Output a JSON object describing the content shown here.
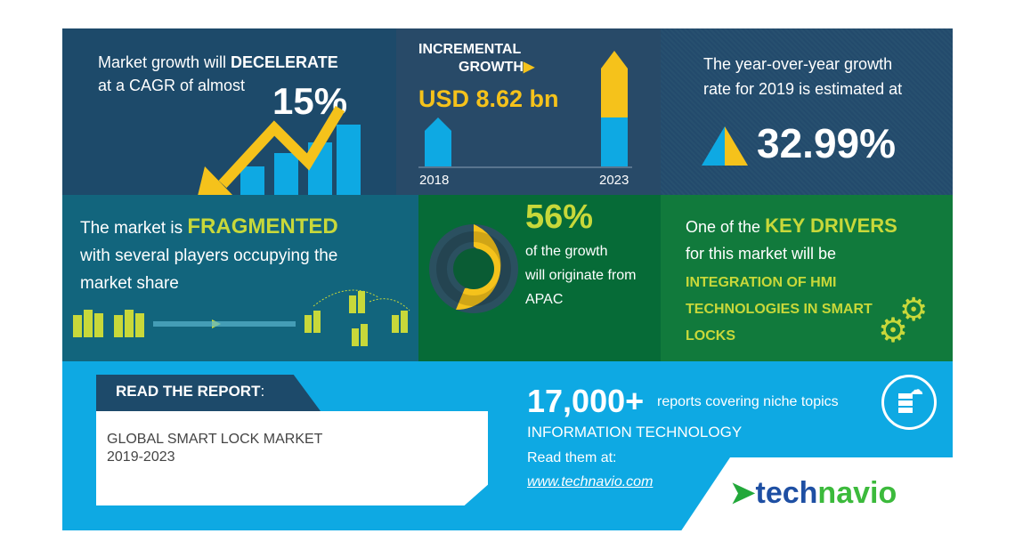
{
  "cagr": {
    "line1_prefix": "Market growth will ",
    "line1_bold": "DECELERATE",
    "line2": "at a CAGR of almost",
    "value": "15%"
  },
  "incremental": {
    "title1": "INCREMENTAL",
    "title2": "GROWTH",
    "value": "USD 8.62 bn",
    "year_start": "2018",
    "year_end": "2023"
  },
  "yoy": {
    "line1": "The year-over-year growth",
    "line2": "rate for 2019 is estimated at",
    "value": "32.99%"
  },
  "fragmented": {
    "prefix": "The market is ",
    "bold": "FRAGMENTED",
    "line2": "with several players occupying the",
    "line3": "market share"
  },
  "region": {
    "value": "56%",
    "line1": "of the growth",
    "line2": "will originate from",
    "line3": "APAC",
    "share": 0.56
  },
  "drivers": {
    "prefix": "One of the ",
    "bold": "KEY DRIVERS",
    "line2": "for this market will be",
    "driver1": "INTEGRATION OF HMI",
    "driver2": "TECHNOLOGIES IN SMART",
    "driver3": "LOCKS"
  },
  "report": {
    "tab": "READ THE REPORT",
    "colon": ":",
    "title1": "GLOBAL SMART LOCK MARKET",
    "title2": "2019-2023"
  },
  "promo": {
    "count": "17,000+",
    "count_text": "reports covering niche topics",
    "category": "INFORMATION TECHNOLOGY",
    "read": "Read them at:",
    "url": "www.technavio.com"
  },
  "logo": {
    "part1": "tech",
    "part2": "navio"
  },
  "colors": {
    "yellow": "#f5c21b",
    "blue": "#0ea9e3",
    "lime": "#c8d83a",
    "navy": "#1d4a6a"
  }
}
